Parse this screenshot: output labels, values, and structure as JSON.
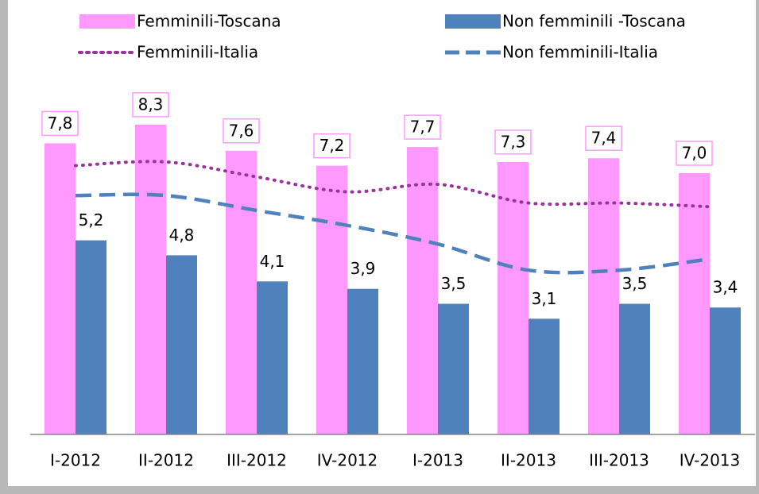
{
  "chart_data": {
    "type": "bar-line",
    "categories": [
      "I-2012",
      "II-2012",
      "III-2012",
      "IV-2012",
      "I-2013",
      "II-2013",
      "III-2013",
      "IV-2013"
    ],
    "series": [
      {
        "name": "Femminili-Toscana",
        "type": "bar",
        "color": "#ff99ff",
        "values": [
          7.8,
          8.3,
          7.6,
          7.2,
          7.7,
          7.3,
          7.4,
          7.0
        ],
        "value_labels": [
          "7,8",
          "8,3",
          "7,6",
          "7,2",
          "7,7",
          "7,3",
          "7,4",
          "7,0"
        ]
      },
      {
        "name": "Non femminili -Toscana",
        "type": "bar",
        "color": "#4f81bd",
        "values": [
          5.2,
          4.8,
          4.1,
          3.9,
          3.5,
          3.1,
          3.5,
          3.4
        ],
        "value_labels": [
          "5,2",
          "4,8",
          "4,1",
          "3,9",
          "3,5",
          "3,1",
          "3,5",
          "3,4"
        ]
      },
      {
        "name": "Femminili-Italia",
        "type": "line",
        "style": "dotted",
        "color": "#993399",
        "values": [
          7.2,
          7.3,
          6.9,
          6.5,
          6.7,
          6.2,
          6.2,
          6.1
        ]
      },
      {
        "name": "Non femminili-Italia",
        "type": "line",
        "style": "dashed",
        "color": "#4f81bd",
        "values": [
          6.4,
          6.4,
          6.0,
          5.6,
          5.1,
          4.4,
          4.4,
          4.7
        ]
      }
    ],
    "ylim": [
      0,
      9.5
    ],
    "legend": "top"
  }
}
